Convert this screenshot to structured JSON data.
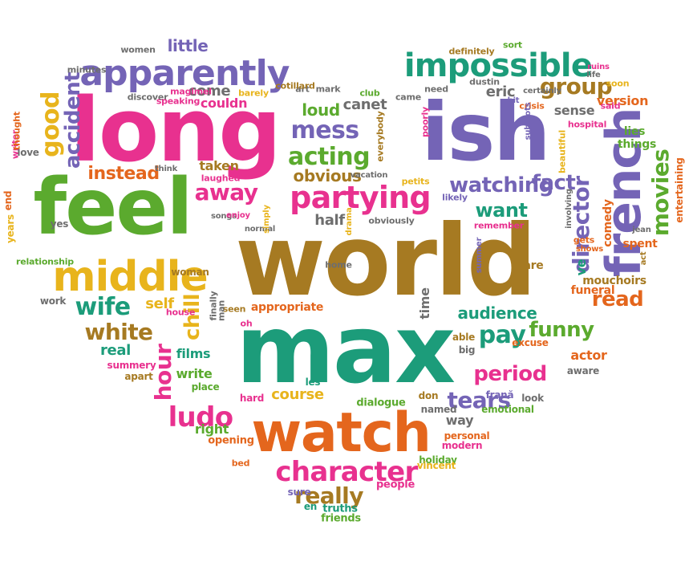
{
  "cloud": {
    "palette": {
      "pink": "#E8318F",
      "purple": "#7464B6",
      "green": "#5BAA2E",
      "teal": "#1C9C7A",
      "orange": "#E4661D",
      "gold": "#E8B41C",
      "brown": "#A67A22",
      "gray": "#6E6E6E"
    },
    "words": [
      {
        "text": "world",
        "color": "#A67A22",
        "rotated": false
      },
      {
        "text": "max",
        "color": "#1C9C7A",
        "rotated": false
      },
      {
        "text": "long",
        "color": "#E8318F",
        "rotated": false
      },
      {
        "text": "ish",
        "color": "#7464B6",
        "rotated": false
      },
      {
        "text": "feel",
        "color": "#5BAA2E",
        "rotated": false
      },
      {
        "text": "watch",
        "color": "#E4661D",
        "rotated": false
      },
      {
        "text": "french",
        "color": "#7464B6",
        "rotated": true
      },
      {
        "text": "middle",
        "color": "#E8B41C",
        "rotated": false
      },
      {
        "text": "apparently",
        "color": "#7464B6",
        "rotated": false
      },
      {
        "text": "impossible",
        "color": "#1C9C7A",
        "rotated": false
      },
      {
        "text": "partying",
        "color": "#E8318F",
        "rotated": false
      },
      {
        "text": "character",
        "color": "#E8318F",
        "rotated": false
      },
      {
        "text": "mess",
        "color": "#7464B6",
        "rotated": false
      },
      {
        "text": "acting",
        "color": "#5BAA2E",
        "rotated": false
      },
      {
        "text": "away",
        "color": "#E8318F",
        "rotated": false
      },
      {
        "text": "director",
        "color": "#7464B6",
        "rotated": true
      },
      {
        "text": "movies",
        "color": "#5BAA2E",
        "rotated": true
      },
      {
        "text": "group",
        "color": "#A67A22",
        "rotated": false
      },
      {
        "text": "watching",
        "color": "#7464B6",
        "rotated": false
      },
      {
        "text": "fact",
        "color": "#7464B6",
        "rotated": false
      },
      {
        "text": "want",
        "color": "#1C9C7A",
        "rotated": false
      },
      {
        "text": "ludo",
        "color": "#E8318F",
        "rotated": false
      },
      {
        "text": "wife",
        "color": "#1C9C7A",
        "rotated": false
      },
      {
        "text": "pay",
        "color": "#1C9C7A",
        "rotated": false
      },
      {
        "text": "funny",
        "color": "#5BAA2E",
        "rotated": false
      },
      {
        "text": "tears",
        "color": "#7464B6",
        "rotated": false
      },
      {
        "text": "period",
        "color": "#E8318F",
        "rotated": false
      },
      {
        "text": "really",
        "color": "#A67A22",
        "rotated": false
      },
      {
        "text": "white",
        "color": "#A67A22",
        "rotated": false
      },
      {
        "text": "hour",
        "color": "#E8318F",
        "rotated": true
      },
      {
        "text": "chill",
        "color": "#E8B41C",
        "rotated": true
      },
      {
        "text": "good",
        "color": "#E8B41C",
        "rotated": true
      },
      {
        "text": "accident",
        "color": "#7464B6",
        "rotated": true
      },
      {
        "text": "read",
        "color": "#E4661D",
        "rotated": false
      },
      {
        "text": "audience",
        "color": "#1C9C7A",
        "rotated": false
      },
      {
        "text": "instead",
        "color": "#E4661D",
        "rotated": false
      },
      {
        "text": "little",
        "color": "#7464B6",
        "rotated": false
      },
      {
        "text": "come",
        "color": "#6E6E6E",
        "rotated": false
      },
      {
        "text": "loud",
        "color": "#5BAA2E",
        "rotated": false
      },
      {
        "text": "obvious",
        "color": "#A67A22",
        "rotated": false
      },
      {
        "text": "canet",
        "color": "#6E6E6E",
        "rotated": false
      },
      {
        "text": "eric",
        "color": "#6E6E6E",
        "rotated": false
      },
      {
        "text": "half",
        "color": "#6E6E6E",
        "rotated": false
      },
      {
        "text": "real",
        "color": "#1C9C7A",
        "rotated": false
      },
      {
        "text": "self",
        "color": "#E8B41C",
        "rotated": false
      },
      {
        "text": "course",
        "color": "#E8B41C",
        "rotated": false
      },
      {
        "text": "version",
        "color": "#E4661D",
        "rotated": false
      },
      {
        "text": "sense",
        "color": "#6E6E6E",
        "rotated": false
      },
      {
        "text": "taken",
        "color": "#A67A22",
        "rotated": false
      },
      {
        "text": "couldn",
        "color": "#E8318F",
        "rotated": false
      },
      {
        "text": "time",
        "color": "#6E6E6E",
        "rotated": true
      },
      {
        "text": "write",
        "color": "#5BAA2E",
        "rotated": false
      },
      {
        "text": "films",
        "color": "#1C9C7A",
        "rotated": false
      },
      {
        "text": "right",
        "color": "#5BAA2E",
        "rotated": false
      },
      {
        "text": "way",
        "color": "#6E6E6E",
        "rotated": false
      },
      {
        "text": "actor",
        "color": "#E4661D",
        "rotated": false
      },
      {
        "text": "appropriate",
        "color": "#E4661D",
        "rotated": false
      },
      {
        "text": "ve",
        "color": "#1C9C7A",
        "rotated": true
      },
      {
        "text": "care",
        "color": "#A67A22",
        "rotated": false
      },
      {
        "text": "things",
        "color": "#5BAA2E",
        "rotated": false
      },
      {
        "text": "lies",
        "color": "#5BAA2E",
        "rotated": false
      },
      {
        "text": "spent",
        "color": "#E4661D",
        "rotated": false
      },
      {
        "text": "funeral",
        "color": "#E4661D",
        "rotated": false
      },
      {
        "text": "mouchoirs",
        "color": "#A67A22",
        "rotated": false
      },
      {
        "text": "comedy",
        "color": "#E4661D",
        "rotated": true
      },
      {
        "text": "entertaining",
        "color": "#E4661D",
        "rotated": true
      },
      {
        "text": "friends",
        "color": "#5BAA2E",
        "rotated": false
      },
      {
        "text": "truths",
        "color": "#1C9C7A",
        "rotated": false
      },
      {
        "text": "people",
        "color": "#E8318F",
        "rotated": false
      },
      {
        "text": "holiday",
        "color": "#5BAA2E",
        "rotated": false
      },
      {
        "text": "vincent",
        "color": "#E8B41C",
        "rotated": false
      },
      {
        "text": "personal",
        "color": "#E4661D",
        "rotated": false
      },
      {
        "text": "modern",
        "color": "#E8318F",
        "rotated": false
      },
      {
        "text": "emotional",
        "color": "#5BAA2E",
        "rotated": false
      },
      {
        "text": "look",
        "color": "#6E6E6E",
        "rotated": false
      },
      {
        "text": "aware",
        "color": "#6E6E6E",
        "rotated": false
      },
      {
        "text": "excuse",
        "color": "#E4661D",
        "rotated": false
      },
      {
        "text": "big",
        "color": "#6E6E6E",
        "rotated": false
      },
      {
        "text": "able",
        "color": "#A67A22",
        "rotated": false
      },
      {
        "text": "named",
        "color": "#6E6E6E",
        "rotated": false
      },
      {
        "text": "don",
        "color": "#A67A22",
        "rotated": false
      },
      {
        "text": "frană",
        "color": "#7464B6",
        "rotated": false
      },
      {
        "text": "dialogue",
        "color": "#5BAA2E",
        "rotated": false
      },
      {
        "text": "hard",
        "color": "#E8318F",
        "rotated": false
      },
      {
        "text": "les",
        "color": "#1C9C7A",
        "rotated": false
      },
      {
        "text": "opening",
        "color": "#E4661D",
        "rotated": false
      },
      {
        "text": "bed",
        "color": "#E4661D",
        "rotated": false
      },
      {
        "text": "sure",
        "color": "#7464B6",
        "rotated": false
      },
      {
        "text": "en",
        "color": "#1C9C7A",
        "rotated": false
      },
      {
        "text": "place",
        "color": "#5BAA2E",
        "rotated": false
      },
      {
        "text": "apart",
        "color": "#A67A22",
        "rotated": false
      },
      {
        "text": "summery",
        "color": "#E8318F",
        "rotated": false
      },
      {
        "text": "seen",
        "color": "#A67A22",
        "rotated": false
      },
      {
        "text": "oh",
        "color": "#E8318F",
        "rotated": false
      },
      {
        "text": "finally",
        "color": "#6E6E6E",
        "rotated": true
      },
      {
        "text": "man",
        "color": "#6E6E6E",
        "rotated": true
      },
      {
        "text": "house",
        "color": "#E8318F",
        "rotated": false
      },
      {
        "text": "woman",
        "color": "#A67A22",
        "rotated": false
      },
      {
        "text": "work",
        "color": "#6E6E6E",
        "rotated": false
      },
      {
        "text": "relationship",
        "color": "#5BAA2E",
        "rotated": false
      },
      {
        "text": "years",
        "color": "#E8B41C",
        "rotated": true
      },
      {
        "text": "end",
        "color": "#E4661D",
        "rotated": true
      },
      {
        "text": "yes",
        "color": "#6E6E6E",
        "rotated": false
      },
      {
        "text": "love",
        "color": "#6E6E6E",
        "rotated": false
      },
      {
        "text": "writer",
        "color": "#E8318F",
        "rotated": true
      },
      {
        "text": "thought",
        "color": "#E4661D",
        "rotated": true
      },
      {
        "text": "minutes",
        "color": "#6E6E6E",
        "rotated": false
      },
      {
        "text": "women",
        "color": "#6E6E6E",
        "rotated": false
      },
      {
        "text": "magimel",
        "color": "#E8318F",
        "rotated": false
      },
      {
        "text": "discover",
        "color": "#6E6E6E",
        "rotated": false
      },
      {
        "text": "speaking",
        "color": "#E8318F",
        "rotated": false
      },
      {
        "text": "barely",
        "color": "#E8B41C",
        "rotated": false
      },
      {
        "text": "art",
        "color": "#6E6E6E",
        "rotated": false
      },
      {
        "text": "cotillard",
        "color": "#A67A22",
        "rotated": false
      },
      {
        "text": "mark",
        "color": "#6E6E6E",
        "rotated": false
      },
      {
        "text": "club",
        "color": "#5BAA2E",
        "rotated": false
      },
      {
        "text": "came",
        "color": "#6E6E6E",
        "rotated": false
      },
      {
        "text": "need",
        "color": "#6E6E6E",
        "rotated": false
      },
      {
        "text": "poorly",
        "color": "#E8318F",
        "rotated": true
      },
      {
        "text": "everybody",
        "color": "#A67A22",
        "rotated": true
      },
      {
        "text": "definitely",
        "color": "#A67A22",
        "rotated": false
      },
      {
        "text": "sort",
        "color": "#5BAA2E",
        "rotated": false
      },
      {
        "text": "dustin",
        "color": "#6E6E6E",
        "rotated": false
      },
      {
        "text": "ruins",
        "color": "#E8318F",
        "rotated": false
      },
      {
        "text": "life",
        "color": "#6E6E6E",
        "rotated": false
      },
      {
        "text": "soon",
        "color": "#E8B41C",
        "rotated": false
      },
      {
        "text": "bit",
        "color": "#7464B6",
        "rotated": false
      },
      {
        "text": "certainly",
        "color": "#6E6E6E",
        "rotated": false
      },
      {
        "text": "crisis",
        "color": "#E4661D",
        "rotated": false
      },
      {
        "text": "said",
        "color": "#E8318F",
        "rotated": false
      },
      {
        "text": "hospital",
        "color": "#E8318F",
        "rotated": false
      },
      {
        "text": "subplots",
        "color": "#7464B6",
        "rotated": true
      },
      {
        "text": "beautiful",
        "color": "#E8B41C",
        "rotated": true
      },
      {
        "text": "think",
        "color": "#6E6E6E",
        "rotated": false
      },
      {
        "text": "laughed",
        "color": "#E8318F",
        "rotated": false
      },
      {
        "text": "vacation",
        "color": "#6E6E6E",
        "rotated": false
      },
      {
        "text": "petits",
        "color": "#E8B41C",
        "rotated": false
      },
      {
        "text": "likely",
        "color": "#7464B6",
        "rotated": false
      },
      {
        "text": "songs",
        "color": "#6E6E6E",
        "rotated": false
      },
      {
        "text": "enjoy",
        "color": "#E8318F",
        "rotated": false
      },
      {
        "text": "normal",
        "color": "#6E6E6E",
        "rotated": false
      },
      {
        "text": "simply",
        "color": "#E8B41C",
        "rotated": true
      },
      {
        "text": "drama",
        "color": "#E8B41C",
        "rotated": true
      },
      {
        "text": "obviously",
        "color": "#6E6E6E",
        "rotated": false
      },
      {
        "text": "remember",
        "color": "#E8318F",
        "rotated": false
      },
      {
        "text": "involving",
        "color": "#6E6E6E",
        "rotated": true
      },
      {
        "text": "gets",
        "color": "#E4661D",
        "rotated": false
      },
      {
        "text": "shows",
        "color": "#E4661D",
        "rotated": false
      },
      {
        "text": "jean",
        "color": "#6E6E6E",
        "rotated": false
      },
      {
        "text": "act",
        "color": "#A67A22",
        "rotated": true
      },
      {
        "text": "summer",
        "color": "#7464B6",
        "rotated": true
      },
      {
        "text": "home",
        "color": "#6E6E6E",
        "rotated": false
      }
    ]
  }
}
